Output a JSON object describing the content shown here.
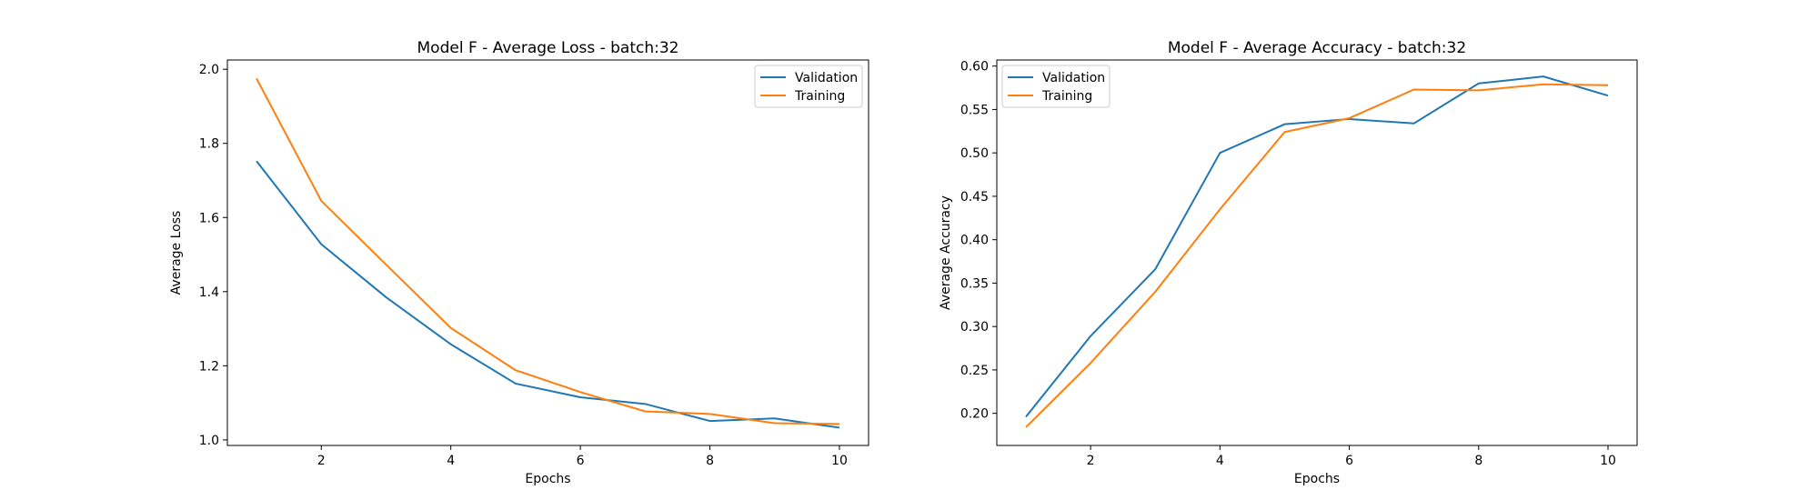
{
  "chart_data": [
    {
      "type": "line",
      "title": "Model F - Average Loss - batch:32",
      "xlabel": "Epochs",
      "ylabel": "Average Loss",
      "x": [
        1,
        2,
        3,
        4,
        5,
        6,
        7,
        8,
        9,
        10
      ],
      "xlim": [
        0.55,
        10.45
      ],
      "ylim": [
        0.985,
        2.025
      ],
      "xticks": [
        2,
        4,
        6,
        8,
        10
      ],
      "yticks": [
        1.0,
        1.2,
        1.4,
        1.6,
        1.8,
        2.0
      ],
      "xtick_labels": [
        "2",
        "4",
        "6",
        "8",
        "10"
      ],
      "ytick_labels": [
        "1.0",
        "1.2",
        "1.4",
        "1.6",
        "1.8",
        "2.0"
      ],
      "legend_position": "upper right",
      "grid": false,
      "series": [
        {
          "name": "Validation",
          "color": "#1f77b4",
          "values": [
            1.752,
            1.528,
            1.385,
            1.258,
            1.152,
            1.115,
            1.097,
            1.051,
            1.058,
            1.033
          ]
        },
        {
          "name": "Training",
          "color": "#ff7f0e",
          "values": [
            1.975,
            1.645,
            1.473,
            1.302,
            1.188,
            1.129,
            1.077,
            1.07,
            1.045,
            1.043
          ]
        }
      ]
    },
    {
      "type": "line",
      "title": "Model F - Average Accuracy - batch:32",
      "xlabel": "Epochs",
      "ylabel": "Average Accuracy",
      "x": [
        1,
        2,
        3,
        4,
        5,
        6,
        7,
        8,
        9,
        10
      ],
      "xlim": [
        0.55,
        10.45
      ],
      "ylim": [
        0.163,
        0.607
      ],
      "xticks": [
        2,
        4,
        6,
        8,
        10
      ],
      "yticks": [
        0.2,
        0.25,
        0.3,
        0.35,
        0.4,
        0.45,
        0.5,
        0.55,
        0.6
      ],
      "xtick_labels": [
        "2",
        "4",
        "6",
        "8",
        "10"
      ],
      "ytick_labels": [
        "0.20",
        "0.25",
        "0.30",
        "0.35",
        "0.40",
        "0.45",
        "0.50",
        "0.55",
        "0.60"
      ],
      "legend_position": "upper left",
      "grid": false,
      "series": [
        {
          "name": "Validation",
          "color": "#1f77b4",
          "values": [
            0.196,
            0.289,
            0.366,
            0.5,
            0.533,
            0.539,
            0.534,
            0.58,
            0.588,
            0.566
          ]
        },
        {
          "name": "Training",
          "color": "#ff7f0e",
          "values": [
            0.184,
            0.258,
            0.34,
            0.435,
            0.524,
            0.54,
            0.573,
            0.572,
            0.579,
            0.578
          ]
        }
      ]
    }
  ]
}
